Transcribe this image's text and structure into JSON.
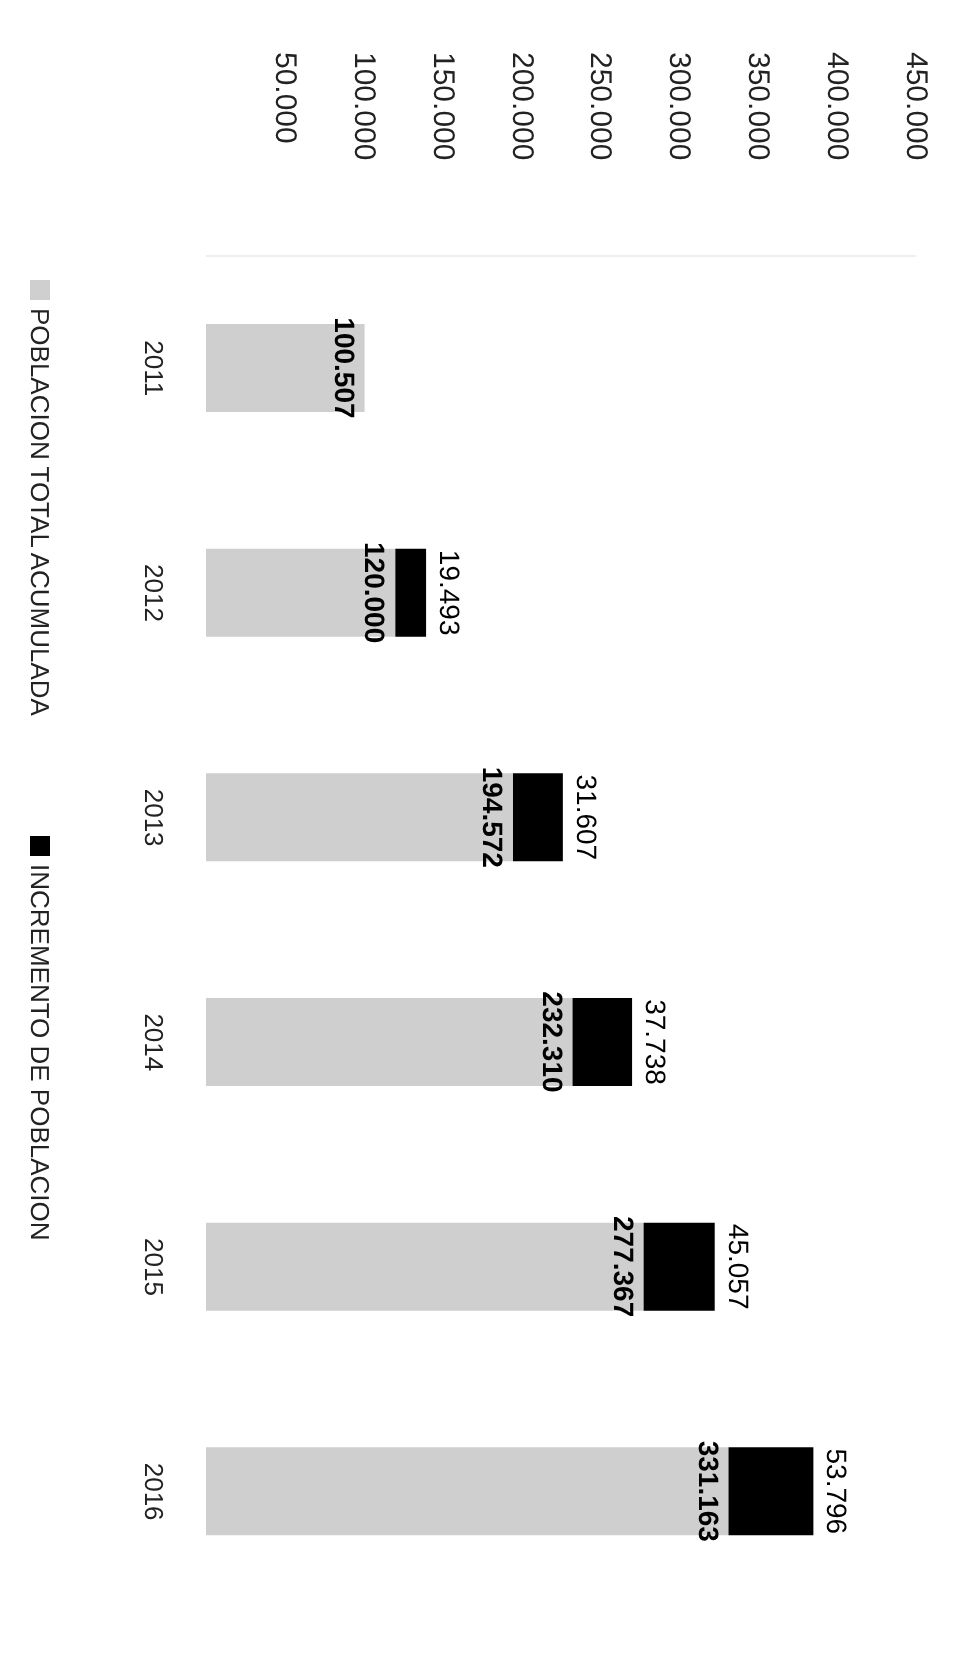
{
  "chart_data": {
    "type": "bar",
    "stacked": true,
    "orientation": "horizontal",
    "categories": [
      "2011",
      "2012",
      "2013",
      "2014",
      "2015",
      "2016"
    ],
    "series": [
      {
        "name": "POBLACION TOTAL ACUMULADA",
        "color": "#cfcfcf",
        "values": [
          100507,
          120000,
          194572,
          232310,
          277367,
          331163
        ],
        "value_labels": [
          "100.507",
          "120.000",
          "194.572",
          "232.310",
          "277.367",
          "331.163"
        ]
      },
      {
        "name": "INCREMENTO DE POBLACION",
        "color": "#000000",
        "values": [
          null,
          19493,
          31607,
          37738,
          45057,
          53796
        ],
        "value_labels": [
          null,
          "19.493",
          "31.607",
          "37.738",
          "45.057",
          "53.796"
        ]
      }
    ],
    "xlim": [
      0,
      450000
    ],
    "xticks": [
      {
        "value": 50000,
        "label": "50.000"
      },
      {
        "value": 100000,
        "label": "100.000"
      },
      {
        "value": 150000,
        "label": "150.000"
      },
      {
        "value": 200000,
        "label": "200.000"
      },
      {
        "value": 250000,
        "label": "250.000"
      },
      {
        "value": 300000,
        "label": "300.000"
      },
      {
        "value": 350000,
        "label": "350.000"
      },
      {
        "value": 400000,
        "label": "400.000"
      },
      {
        "value": 450000,
        "label": "450.000"
      }
    ],
    "grid": false,
    "legend": "left"
  }
}
